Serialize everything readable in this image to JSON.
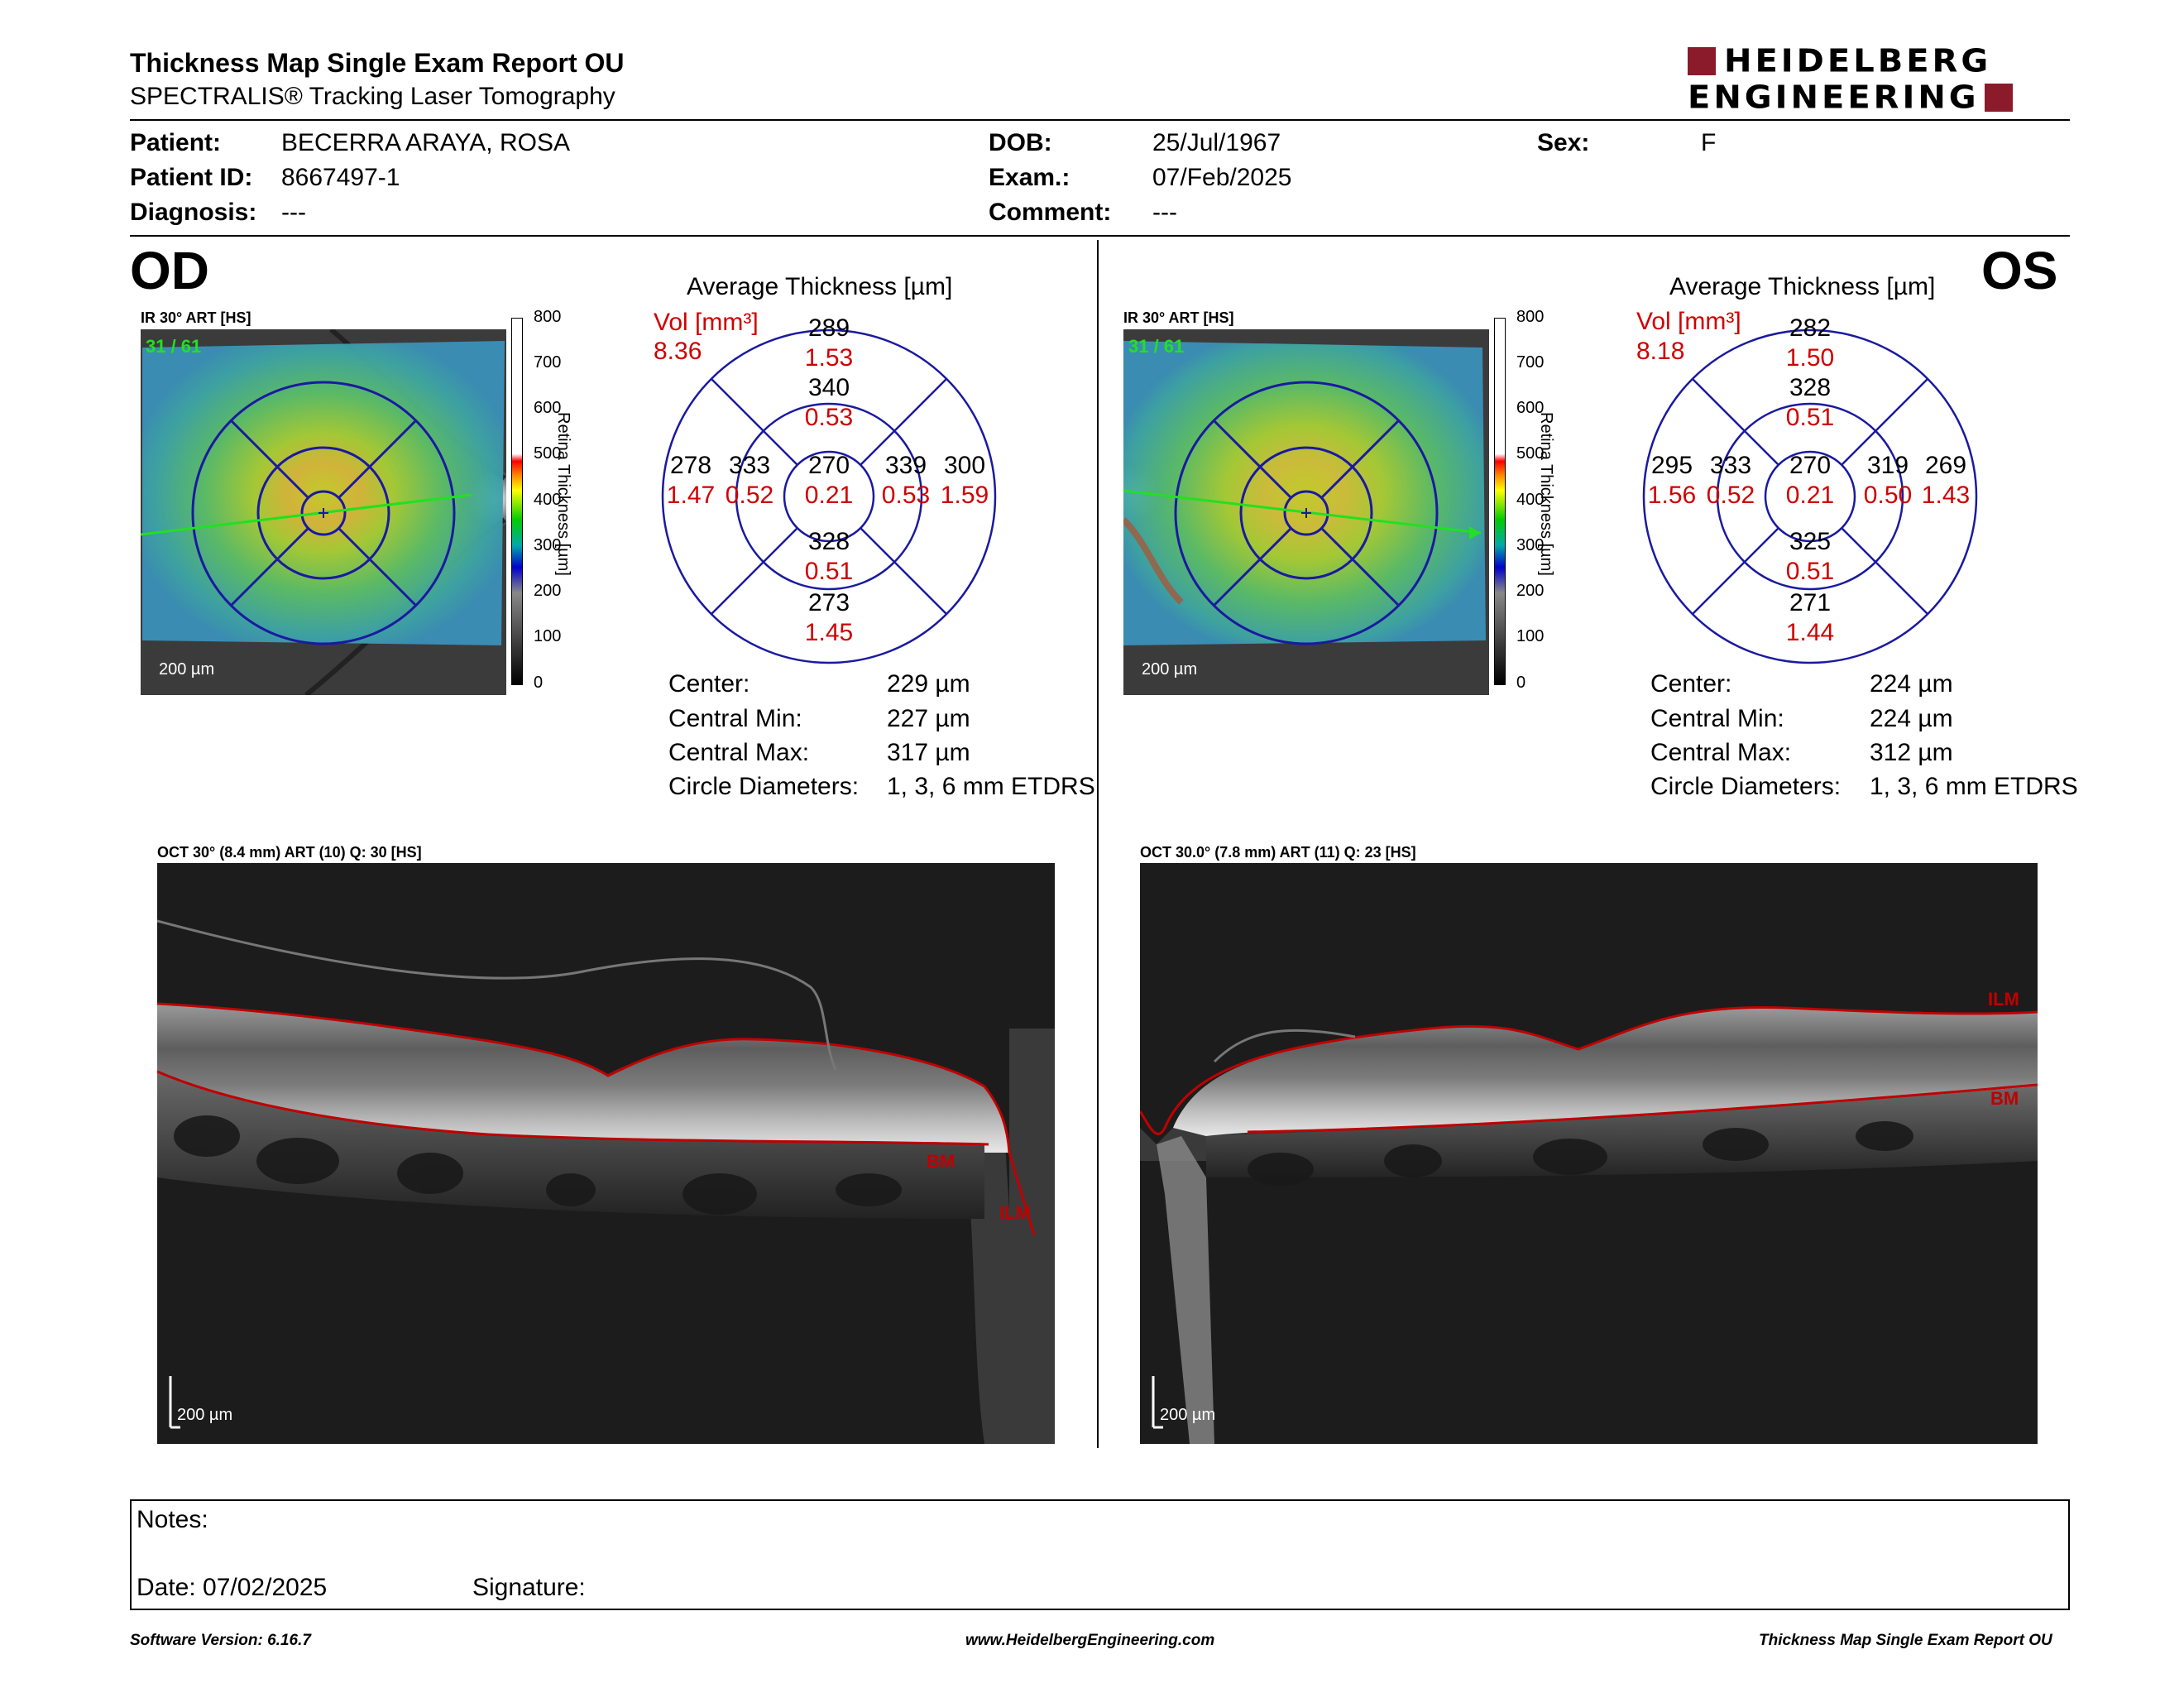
{
  "header": {
    "title": "Thickness Map Single Exam Report OU",
    "subtitle": "SPECTRALIS® Tracking Laser Tomography",
    "logo_line1": "HEIDELBERG",
    "logo_line2": "ENGINEERING"
  },
  "patient": {
    "patient_label": "Patient:",
    "patient_value": "BECERRA ARAYA, ROSA",
    "id_label": "Patient ID:",
    "id_value": "8667497-1",
    "diagnosis_label": "Diagnosis:",
    "diagnosis_value": "---",
    "dob_label": "DOB:",
    "dob_value": "25/Jul/1967",
    "exam_label": "Exam.:",
    "exam_value": "07/Feb/2025",
    "comment_label": "Comment:",
    "comment_value": "---",
    "sex_label": "Sex:",
    "sex_value": "F"
  },
  "od": {
    "eye": "OD",
    "ir_label": "IR 30° ART [HS]",
    "frame_count": "31 / 61",
    "scale_bar": "200 µm",
    "legend_title": "Retina Thickness [µm]",
    "legend_ticks": [
      "800",
      "700",
      "600",
      "500",
      "400",
      "300",
      "200",
      "100",
      "0"
    ],
    "avg_title": "Average Thickness [µm]",
    "vol_label": "Vol [mm³]",
    "vol_value": "8.36",
    "etdrs": {
      "center": {
        "t": "270",
        "v": "0.21"
      },
      "inner_sup": {
        "t": "340",
        "v": "0.53"
      },
      "inner_inf": {
        "t": "328",
        "v": "0.51"
      },
      "inner_left": {
        "t": "333",
        "v": "0.52"
      },
      "inner_right": {
        "t": "339",
        "v": "0.53"
      },
      "outer_sup": {
        "t": "289",
        "v": "1.53"
      },
      "outer_inf": {
        "t": "273",
        "v": "1.45"
      },
      "outer_left": {
        "t": "278",
        "v": "1.47"
      },
      "outer_right": {
        "t": "300",
        "v": "1.59"
      }
    },
    "stats": [
      {
        "label": "Center:",
        "value": "229 µm"
      },
      {
        "label": "Central Min:",
        "value": "227 µm"
      },
      {
        "label": "Central Max:",
        "value": "317 µm"
      },
      {
        "label": "Circle Diameters:",
        "value": "1, 3, 6 mm ETDRS"
      }
    ],
    "oct_label": "OCT 30° (8.4 mm) ART (10) Q: 30 [HS]",
    "oct_bm": "BM",
    "oct_ilm": "ILM",
    "oct_scale": "200 µm"
  },
  "os": {
    "eye": "OS",
    "ir_label": "IR 30° ART [HS]",
    "frame_count": "31 / 61",
    "scale_bar": "200 µm",
    "legend_title": "Retina Thickness [µm]",
    "legend_ticks": [
      "800",
      "700",
      "600",
      "500",
      "400",
      "300",
      "200",
      "100",
      "0"
    ],
    "avg_title": "Average Thickness [µm]",
    "vol_label": "Vol [mm³]",
    "vol_value": "8.18",
    "etdrs": {
      "center": {
        "t": "270",
        "v": "0.21"
      },
      "inner_sup": {
        "t": "328",
        "v": "0.51"
      },
      "inner_inf": {
        "t": "325",
        "v": "0.51"
      },
      "inner_left": {
        "t": "333",
        "v": "0.52"
      },
      "inner_right": {
        "t": "319",
        "v": "0.50"
      },
      "outer_sup": {
        "t": "282",
        "v": "1.50"
      },
      "outer_inf": {
        "t": "271",
        "v": "1.44"
      },
      "outer_left": {
        "t": "295",
        "v": "1.56"
      },
      "outer_right": {
        "t": "269",
        "v": "1.43"
      }
    },
    "stats": [
      {
        "label": "Center:",
        "value": "224 µm"
      },
      {
        "label": "Central Min:",
        "value": "224 µm"
      },
      {
        "label": "Central Max:",
        "value": "312 µm"
      },
      {
        "label": "Circle Diameters:",
        "value": "1, 3, 6 mm ETDRS"
      }
    ],
    "oct_label": "OCT 30.0° (7.8 mm) ART (11) Q: 23 [HS]",
    "oct_bm": "BM",
    "oct_ilm": "ILM",
    "oct_scale": "200 µm"
  },
  "notes": {
    "notes_label": "Notes:",
    "date_label": "Date: 07/02/2025",
    "signature_label": "Signature:"
  },
  "footer": {
    "software": "Software Version: 6.16.7",
    "website": "www.HeidelbergEngineering.com",
    "report": "Thickness Map Single Exam Report OU"
  },
  "colors": {
    "brand": "#8b1a2b",
    "grid_blue": "#1a1aa0",
    "vol_red": "#d00000",
    "layer_red": "#c00000",
    "scan_green": "#22e022"
  }
}
